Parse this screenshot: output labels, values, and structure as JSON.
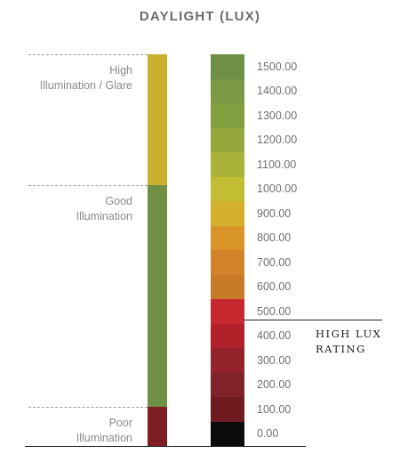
{
  "title": "DAYLIGHT (LUX)",
  "zones": [
    {
      "label": "High\nIllumination / Glare",
      "color": "#c9b02e",
      "from": 1000,
      "to": 1500
    },
    {
      "label": "Good\nIllumination",
      "color": "#6f8f45",
      "from": 150,
      "to": 1000
    },
    {
      "label": "Poor\nIllumination",
      "color": "#7f1d22",
      "from": 0,
      "to": 150
    }
  ],
  "scale": {
    "ticks": [
      "1500.00",
      "1400.00",
      "1300.00",
      "1200.00",
      "1100.00",
      "1000.00",
      "900.00",
      "800.00",
      "700.00",
      "600.00",
      "500.00",
      "400.00",
      "300.00",
      "200.00",
      "100.00",
      "0.00"
    ],
    "colors": [
      "#6f8f45",
      "#7b9844",
      "#83a040",
      "#94a83c",
      "#aab23a",
      "#c3bd33",
      "#d3af2c",
      "#d89429",
      "#d28228",
      "#c77b28",
      "#c7272e",
      "#b22129",
      "#93222b",
      "#80222a",
      "#6e1a1f",
      "#0c0a0a"
    ]
  },
  "threshold": {
    "value": 500,
    "label_line1": "HIGH LUX",
    "label_line2": "RATING"
  }
}
